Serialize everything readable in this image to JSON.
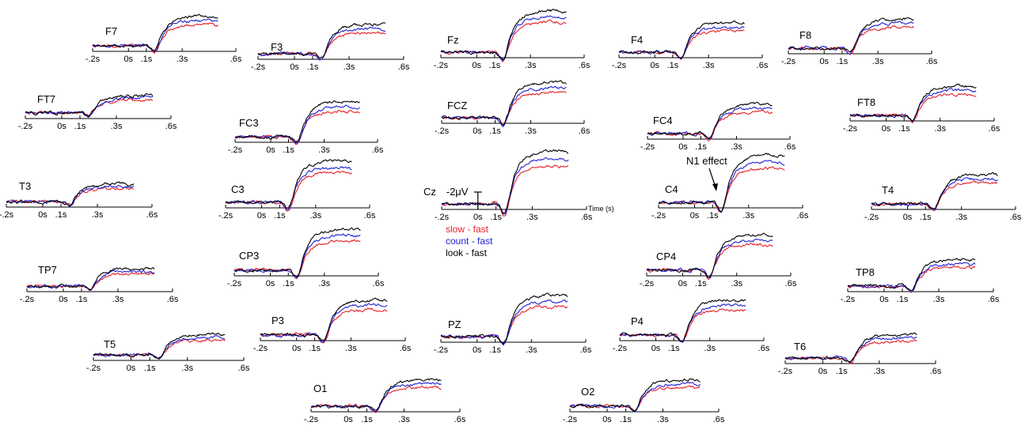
{
  "chart_data": {
    "type": "line",
    "title": "",
    "x_tick_labels": [
      "-.2s",
      "0s",
      ".1s",
      ".3s",
      ".6s"
    ],
    "x_tick_values": [
      -0.2,
      0,
      0.1,
      0.3,
      0.6
    ],
    "xlim": [
      -0.2,
      0.6
    ],
    "y_scale_label": "-2μV",
    "time_axis_label": "Time (s)",
    "annotation": "N1 effect",
    "annotation_channel": "C4",
    "series": [
      {
        "name": "slow - fast",
        "color": "#e8212a"
      },
      {
        "name": "count - fast",
        "color": "#1f23d6"
      },
      {
        "name": "look - fast",
        "color": "#000000"
      }
    ],
    "channels": [
      {
        "name": "F7"
      },
      {
        "name": "F3"
      },
      {
        "name": "Fz"
      },
      {
        "name": "F4"
      },
      {
        "name": "F8"
      },
      {
        "name": "FT7"
      },
      {
        "name": "FC3"
      },
      {
        "name": "FCZ"
      },
      {
        "name": "FC4"
      },
      {
        "name": "FT8"
      },
      {
        "name": "T3"
      },
      {
        "name": "C3"
      },
      {
        "name": "Cz"
      },
      {
        "name": "C4"
      },
      {
        "name": "T4"
      },
      {
        "name": "TP7"
      },
      {
        "name": "CP3"
      },
      {
        "name": "CP4"
      },
      {
        "name": "TP8"
      },
      {
        "name": "T5"
      },
      {
        "name": "P3"
      },
      {
        "name": "PZ"
      },
      {
        "name": "P4"
      },
      {
        "name": "T6"
      },
      {
        "name": "O1"
      },
      {
        "name": "O2"
      }
    ]
  }
}
